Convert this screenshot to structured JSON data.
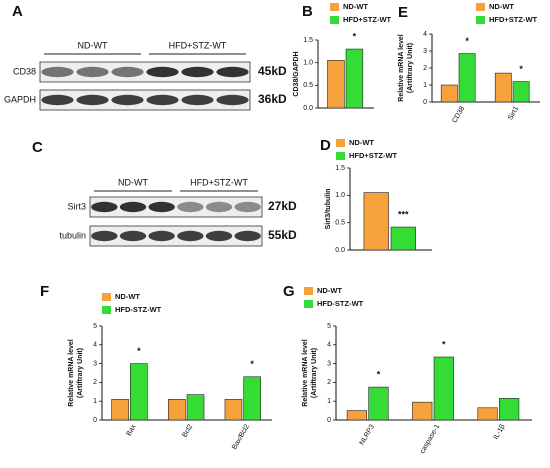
{
  "blots": [
    {
      "panel": "A",
      "groups": [
        "ND-WT",
        "HFD+STZ-WT"
      ],
      "rows": [
        {
          "name": "CD38",
          "size": "45kD"
        },
        {
          "name": "GAPDH",
          "size": "36kD"
        }
      ]
    },
    {
      "panel": "C",
      "groups": [
        "ND-WT",
        "HFD+STZ-WT"
      ],
      "rows": [
        {
          "name": "Sirt3",
          "size": "27kD"
        },
        {
          "name": "tubulin",
          "size": "55kD"
        }
      ]
    }
  ],
  "chart_data": [
    {
      "type": "bar",
      "panel": "B",
      "ylabel": "CD38/GAPDH",
      "categories": [
        null
      ],
      "series": [
        {
          "name": "ND-WT",
          "color": "#f5a23c",
          "values": [
            1.05
          ]
        },
        {
          "name": "HFD+STZ-WT",
          "color": "#35dc35",
          "values": [
            1.3
          ],
          "significance": [
            "*"
          ]
        }
      ],
      "ylim": [
        0,
        1.5
      ],
      "yticks": [
        {
          "value": 0,
          "label": "0.0"
        },
        0.5,
        {
          "value": 1,
          "label": "1.0"
        },
        1.5
      ]
    },
    {
      "type": "bar",
      "panel": "E",
      "ylabel": [
        "Relative mRNA level",
        "(Artiftrary Unit)"
      ],
      "categories": [
        "CD38",
        "Sirt1"
      ],
      "series": [
        {
          "name": "ND-WT",
          "color": "#f5a23c",
          "values": [
            1.0,
            1.7
          ]
        },
        {
          "name": "HFD+STZ-WT",
          "color": "#35dc35",
          "values": [
            2.85,
            1.2
          ],
          "significance": [
            "*",
            "*"
          ]
        }
      ],
      "ylim": [
        0,
        4
      ],
      "yticks": [
        0,
        1,
        2,
        3,
        4
      ]
    },
    {
      "type": "bar",
      "panel": "D",
      "ylabel": "Sirt3/tubulin",
      "categories": [
        null
      ],
      "series": [
        {
          "name": "ND-WT",
          "color": "#f5a23c",
          "values": [
            1.05
          ]
        },
        {
          "name": "HFD+STZ-WT",
          "color": "#35dc35",
          "values": [
            0.42
          ],
          "significance": [
            "***"
          ]
        }
      ],
      "ylim": [
        0,
        1.5
      ],
      "yticks": [
        {
          "value": 0,
          "label": "0.0"
        },
        0.5,
        {
          "value": 1,
          "label": "1.0"
        },
        1.5
      ]
    },
    {
      "type": "bar",
      "panel": "F",
      "ylabel": [
        "Relative mRNA level",
        "(Artiftrary Unit)"
      ],
      "categories": [
        "Bax",
        "Bcl2",
        "Bax/Bcl2"
      ],
      "series": [
        {
          "name": "ND-WT",
          "color": "#f5a23c",
          "values": [
            1.1,
            1.1,
            1.1
          ]
        },
        {
          "name": "HFD-STZ-WT",
          "color": "#35dc35",
          "values": [
            3.0,
            1.35,
            2.3
          ],
          "significance": [
            "*",
            null,
            "*"
          ]
        }
      ],
      "ylim": [
        0,
        5
      ],
      "yticks": [
        0,
        1,
        2,
        3,
        4,
        5
      ]
    },
    {
      "type": "bar",
      "panel": "G",
      "ylabel": [
        "Relative mRNA level",
        "(Artiftrary Unit)"
      ],
      "categories": [
        "NLRP3",
        "caspase-1",
        "IL-1β"
      ],
      "series": [
        {
          "name": "ND-WT",
          "color": "#f5a23c",
          "values": [
            0.5,
            0.95,
            0.65
          ]
        },
        {
          "name": "HFD-STZ-WT",
          "color": "#35dc35",
          "values": [
            1.75,
            3.35,
            1.15
          ],
          "significance": [
            "*",
            "*",
            null
          ]
        }
      ],
      "ylim": [
        0,
        5
      ],
      "yticks": [
        0,
        1,
        2,
        3,
        4,
        5
      ]
    }
  ]
}
